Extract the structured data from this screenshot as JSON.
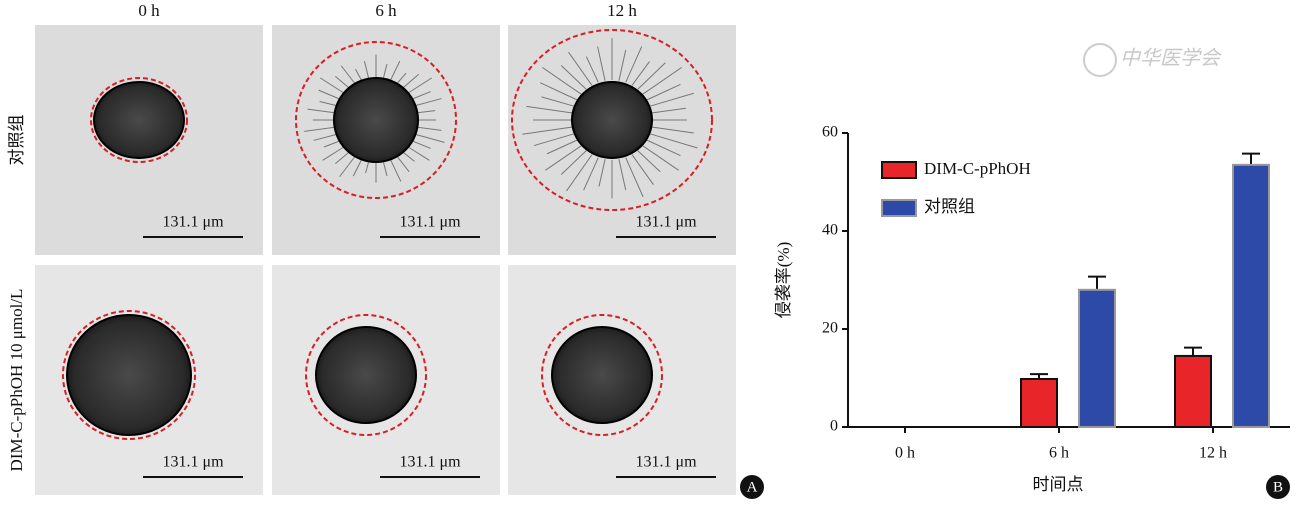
{
  "panel_a": {
    "label": "A",
    "columns": [
      "0 h",
      "6 h",
      "12 h"
    ],
    "rows": [
      "对照组",
      "DIM-C-pPhOH 10 μmol/L"
    ],
    "scale_bars": [
      [
        "131.1 μm",
        "131.1 μm",
        "131.1 μm"
      ],
      [
        "131.1 μm",
        "131.1 μm",
        "131.1 μm"
      ]
    ]
  },
  "watermark": "中华医学会",
  "chart_data": {
    "type": "bar",
    "label": "B",
    "categories": [
      "0 h",
      "6 h",
      "12 h"
    ],
    "series": [
      {
        "name": "DIM-C-pPhOH",
        "color": "#e8262a",
        "values": [
          0,
          9.8,
          14.5
        ],
        "errors": [
          0,
          1.0,
          1.7
        ]
      },
      {
        "name": "对照组",
        "color": "#2e4aa8",
        "values": [
          0,
          28,
          53.5
        ],
        "errors": [
          0,
          2.7,
          2.3
        ]
      }
    ],
    "ylim": [
      0,
      60
    ],
    "yticks": [
      0,
      20,
      40,
      60
    ],
    "ylabel": "侵袭率(%)",
    "xlabel": "时间点"
  }
}
